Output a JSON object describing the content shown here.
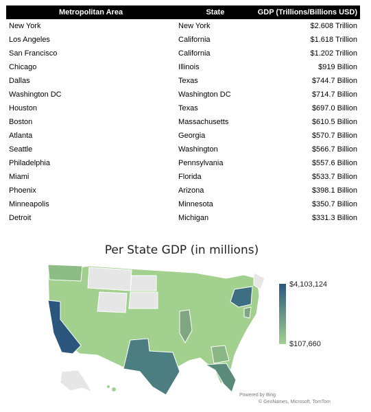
{
  "table": {
    "headers": [
      "Metropolitan Area",
      "State",
      "GDP (Trillions/Billions USD)"
    ],
    "rows": [
      [
        "New York",
        "New York",
        "$2.608 Trillion"
      ],
      [
        "Los Angeles",
        "California",
        "$1.618 Trillion"
      ],
      [
        "San Francisco",
        "California",
        "$1.202 Trillion"
      ],
      [
        "Chicago",
        "Illinois",
        "$919 Billion"
      ],
      [
        "Dallas",
        "Texas",
        "$744.7 Billion"
      ],
      [
        "Washington DC",
        "Washington DC",
        "$714.7 Billion"
      ],
      [
        "Houston",
        "Texas",
        "$697.0 Billion"
      ],
      [
        "Boston",
        "Massachusetts",
        "$610.5 Billion"
      ],
      [
        "Atlanta",
        "Georgia",
        "$570.7 Billion"
      ],
      [
        "Seattle",
        "Washington",
        "$566.7 Billion"
      ],
      [
        "Philadelphia",
        "Pennsylvania",
        "$557.6 Billion"
      ],
      [
        "Miami",
        "Florida",
        "$533.7 Billion"
      ],
      [
        "Phoenix",
        "Arizona",
        "$398.1 Billion"
      ],
      [
        "Minneapolis",
        "Minnesota",
        "$350.7 Billion"
      ],
      [
        "Detroit",
        "Michigan",
        "$331.3 Billion"
      ]
    ]
  },
  "map": {
    "title": "Per State GDP (in millions)",
    "legend_max": "$4,103,124",
    "legend_min": "$107,660",
    "attribution_bing": "Powered by Bing",
    "attribution_credits": "© GeoNames, Microsoft, TomTom",
    "colors": {
      "high": "#2b577e",
      "low": "#a2d08f",
      "no_data": "#e6e6e6"
    }
  }
}
